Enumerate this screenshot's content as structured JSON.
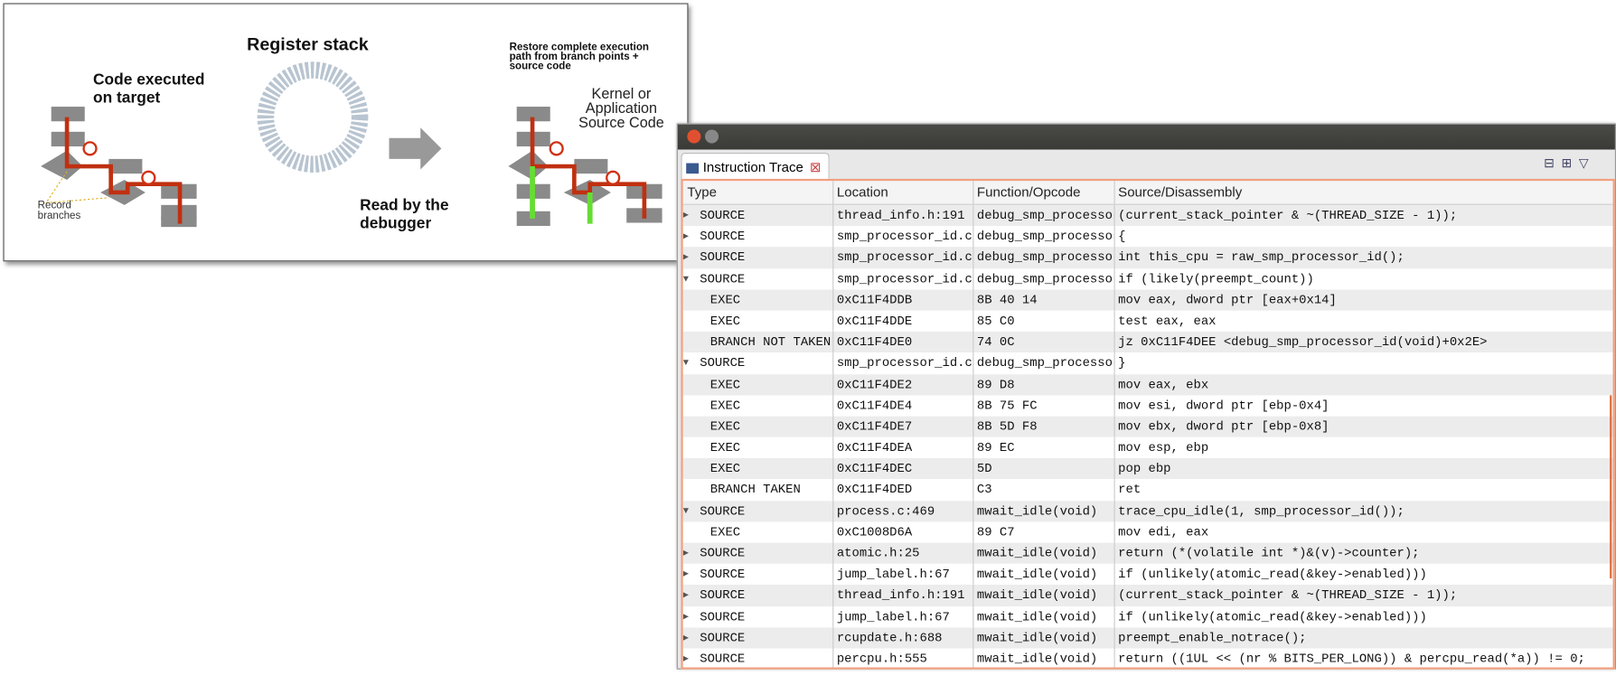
{
  "diagram": {
    "title": "Register stack",
    "code_executed": [
      "Code executed",
      "on target"
    ],
    "record_branches": [
      "Record",
      "branches"
    ],
    "read_by": [
      "Read by the",
      "debugger"
    ],
    "restore": [
      "Restore complete execution",
      "path from branch points +",
      "source code"
    ],
    "kernel": [
      "Kernel or",
      "Application",
      "Source Code"
    ]
  },
  "window": {
    "tab": "Instruction Trace",
    "columns": [
      "Type",
      "Location",
      "Function/Opcode",
      "Source/Disassembly"
    ],
    "rows": [
      {
        "expander": "collapsed",
        "type": "SOURCE",
        "location": "thread_info.h:191",
        "function": "debug_smp_processo",
        "source": "(current_stack_pointer & ~(THREAD_SIZE - 1));"
      },
      {
        "expander": "collapsed",
        "type": "SOURCE",
        "location": "smp_processor_id.c",
        "function": "debug_smp_processo",
        "source": "{"
      },
      {
        "expander": "collapsed",
        "type": "SOURCE",
        "location": "smp_processor_id.c",
        "function": "debug_smp_processo",
        "source": "int this_cpu = raw_smp_processor_id();"
      },
      {
        "expander": "expanded",
        "type": "SOURCE",
        "location": "smp_processor_id.c",
        "function": "debug_smp_processo",
        "source": "if (likely(preempt_count))"
      },
      {
        "type": "EXEC",
        "location": "0xC11F4DDB",
        "function": "8B 40 14",
        "source": "mov eax, dword ptr [eax+0x14]"
      },
      {
        "type": "EXEC",
        "location": "0xC11F4DDE",
        "function": "85 C0",
        "source": "test eax, eax"
      },
      {
        "type": "BRANCH NOT TAKEN",
        "location": "0xC11F4DE0",
        "function": "74 0C",
        "source": "jz 0xC11F4DEE <debug_smp_processor_id(void)+0x2E>"
      },
      {
        "expander": "expanded",
        "type": "SOURCE",
        "location": "smp_processor_id.c",
        "function": "debug_smp_processo",
        "source": "}"
      },
      {
        "type": "EXEC",
        "location": "0xC11F4DE2",
        "function": "89 D8",
        "source": "mov eax, ebx"
      },
      {
        "type": "EXEC",
        "location": "0xC11F4DE4",
        "function": "8B 75 FC",
        "source": "mov esi, dword ptr [ebp-0x4]"
      },
      {
        "type": "EXEC",
        "location": "0xC11F4DE7",
        "function": "8B 5D F8",
        "source": "mov ebx, dword ptr [ebp-0x8]"
      },
      {
        "type": "EXEC",
        "location": "0xC11F4DEA",
        "function": "89 EC",
        "source": "mov esp, ebp"
      },
      {
        "type": "EXEC",
        "location": "0xC11F4DEC",
        "function": "5D",
        "source": "pop ebp"
      },
      {
        "type": "BRANCH TAKEN",
        "location": "0xC11F4DED",
        "function": "C3",
        "source": "ret"
      },
      {
        "expander": "expanded",
        "type": "SOURCE",
        "location": "process.c:469",
        "function": "mwait_idle(void)",
        "source": "trace_cpu_idle(1, smp_processor_id());"
      },
      {
        "type": "EXEC",
        "location": "0xC1008D6A",
        "function": "89 C7",
        "source": "mov edi, eax"
      },
      {
        "expander": "collapsed",
        "type": "SOURCE",
        "location": "atomic.h:25",
        "function": "mwait_idle(void)",
        "source": "return (*(volatile int *)&(v)->counter);"
      },
      {
        "expander": "collapsed",
        "type": "SOURCE",
        "location": "jump_label.h:67",
        "function": "mwait_idle(void)",
        "source": "if (unlikely(atomic_read(&key->enabled)))"
      },
      {
        "expander": "collapsed",
        "type": "SOURCE",
        "location": "thread_info.h:191",
        "function": "mwait_idle(void)",
        "source": "(current_stack_pointer & ~(THREAD_SIZE - 1));"
      },
      {
        "expander": "collapsed",
        "type": "SOURCE",
        "location": "jump_label.h:67",
        "function": "mwait_idle(void)",
        "source": "if (unlikely(atomic_read(&key->enabled)))"
      },
      {
        "expander": "collapsed",
        "type": "SOURCE",
        "location": "rcupdate.h:688",
        "function": "mwait_idle(void)",
        "source": "preempt_enable_notrace();"
      },
      {
        "expander": "collapsed",
        "type": "SOURCE",
        "location": "percpu.h:555",
        "function": "mwait_idle(void)",
        "source": "return ((1UL << (nr % BITS_PER_LONG)) & percpu_read(*a)) != 0;"
      }
    ]
  }
}
